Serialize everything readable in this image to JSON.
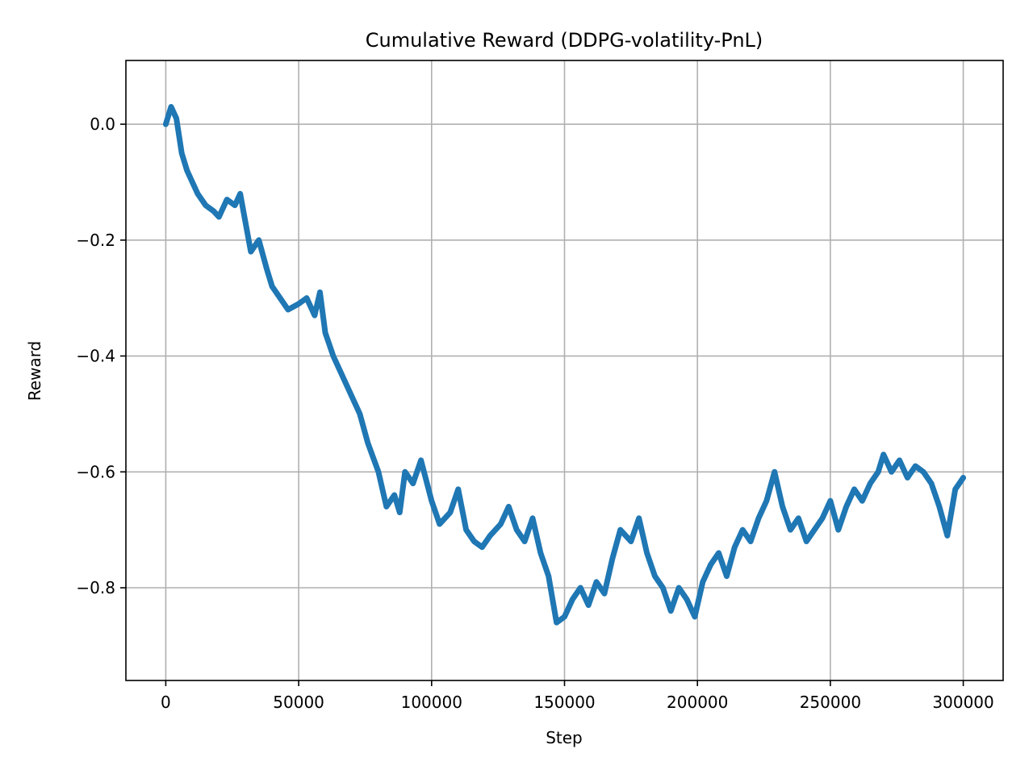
{
  "chart_data": {
    "type": "line",
    "title": "Cumulative Reward (DDPG-volatility-PnL)",
    "xlabel": "Step",
    "ylabel": "Reward",
    "xlim": [
      -15000,
      315000
    ],
    "ylim": [
      -0.96,
      0.11
    ],
    "grid": true,
    "x_ticks": [
      0,
      50000,
      100000,
      150000,
      200000,
      250000,
      300000
    ],
    "x_tick_labels": [
      "0",
      "50000",
      "100000",
      "150000",
      "200000",
      "250000",
      "300000"
    ],
    "y_ticks": [
      0.0,
      -0.2,
      -0.4,
      -0.6,
      -0.8
    ],
    "y_tick_labels": [
      "0.0",
      "−0.2",
      "−0.4",
      "−0.6",
      "−0.8"
    ],
    "line_color": "#1f77b4",
    "series": [
      {
        "x": [
          0,
          2000,
          4000,
          6000,
          8000,
          10000,
          12000,
          15000,
          18000,
          20000,
          23000,
          26000,
          28000,
          30000,
          32000,
          35000,
          38000,
          40000,
          43000,
          46000,
          50000,
          53000,
          56000,
          58000,
          60000,
          63000,
          66000,
          70000,
          73000,
          76000,
          80000,
          83000,
          86000,
          88000,
          90000,
          93000,
          96000,
          100000,
          103000,
          107000,
          110000,
          113000,
          116000,
          119000,
          122000,
          126000,
          129000,
          132000,
          135000,
          138000,
          141000,
          144000,
          147000,
          150000,
          153000,
          156000,
          159000,
          162000,
          165000,
          168000,
          171000,
          175000,
          178000,
          181000,
          184000,
          187000,
          190000,
          193000,
          196000,
          199000,
          202000,
          205000,
          208000,
          211000,
          214000,
          217000,
          220000,
          223000,
          226000,
          229000,
          232000,
          235000,
          238000,
          241000,
          244000,
          247000,
          250000,
          253000,
          256000,
          259000,
          262000,
          265000,
          268000,
          270000,
          273000,
          276000,
          279000,
          282000,
          285000,
          288000,
          291000,
          294000,
          297000,
          300000
        ],
        "y": [
          0.0,
          0.03,
          0.01,
          -0.05,
          -0.08,
          -0.1,
          -0.12,
          -0.14,
          -0.15,
          -0.16,
          -0.13,
          -0.14,
          -0.12,
          -0.17,
          -0.22,
          -0.2,
          -0.25,
          -0.28,
          -0.3,
          -0.32,
          -0.31,
          -0.3,
          -0.33,
          -0.29,
          -0.36,
          -0.4,
          -0.43,
          -0.47,
          -0.5,
          -0.55,
          -0.6,
          -0.66,
          -0.64,
          -0.67,
          -0.6,
          -0.62,
          -0.58,
          -0.65,
          -0.69,
          -0.67,
          -0.63,
          -0.7,
          -0.72,
          -0.73,
          -0.71,
          -0.69,
          -0.66,
          -0.7,
          -0.72,
          -0.68,
          -0.74,
          -0.78,
          -0.86,
          -0.85,
          -0.82,
          -0.8,
          -0.83,
          -0.79,
          -0.81,
          -0.75,
          -0.7,
          -0.72,
          -0.68,
          -0.74,
          -0.78,
          -0.8,
          -0.84,
          -0.8,
          -0.82,
          -0.85,
          -0.79,
          -0.76,
          -0.74,
          -0.78,
          -0.73,
          -0.7,
          -0.72,
          -0.68,
          -0.65,
          -0.6,
          -0.66,
          -0.7,
          -0.68,
          -0.72,
          -0.7,
          -0.68,
          -0.65,
          -0.7,
          -0.66,
          -0.63,
          -0.65,
          -0.62,
          -0.6,
          -0.57,
          -0.6,
          -0.58,
          -0.61,
          -0.59,
          -0.6,
          -0.62,
          -0.66,
          -0.71,
          -0.63,
          -0.61
        ]
      }
    ]
  }
}
